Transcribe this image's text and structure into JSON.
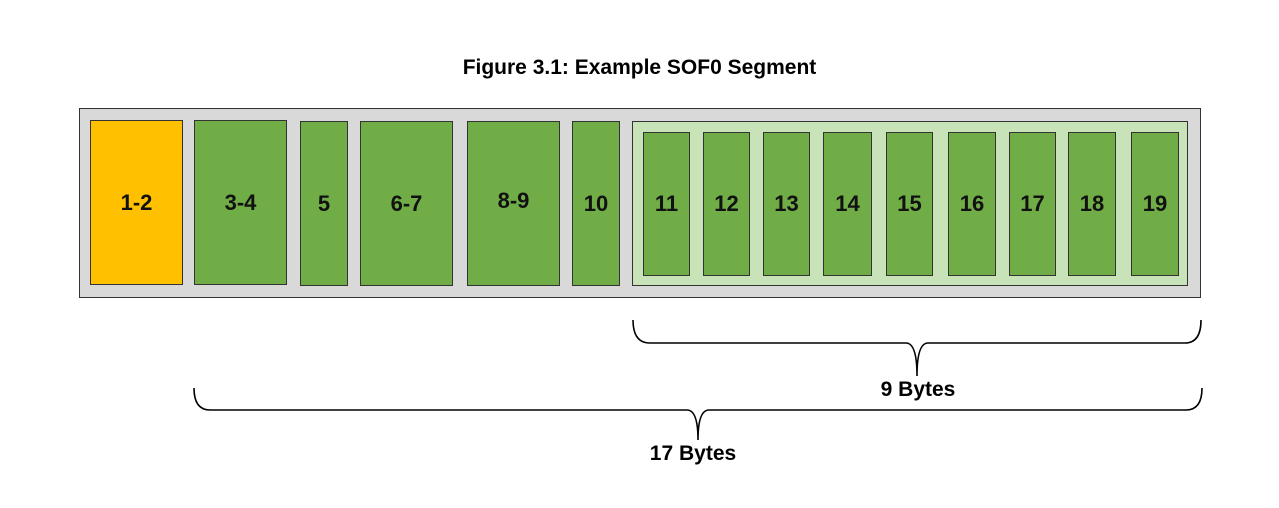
{
  "title": "Figure 3.1: Example SOF0 Segment",
  "colors": {
    "marker": "#ffc000",
    "field": "#70ad47",
    "segment_bg": "#d9d9d9",
    "group_bg": "#c8e3b8",
    "outline": "#333333"
  },
  "fields": [
    {
      "label": "1-2",
      "role": "marker"
    },
    {
      "label": "3-4",
      "role": "field"
    },
    {
      "label": "5",
      "role": "field"
    },
    {
      "label": "6-7",
      "role": "field"
    },
    {
      "label": "8-9",
      "role": "field"
    },
    {
      "label": "10",
      "role": "field"
    }
  ],
  "component_bytes": [
    "11",
    "12",
    "13",
    "14",
    "15",
    "16",
    "17",
    "18",
    "19"
  ],
  "braces": {
    "component": {
      "label": "9 Bytes"
    },
    "segment": {
      "label": "17 Bytes"
    }
  }
}
